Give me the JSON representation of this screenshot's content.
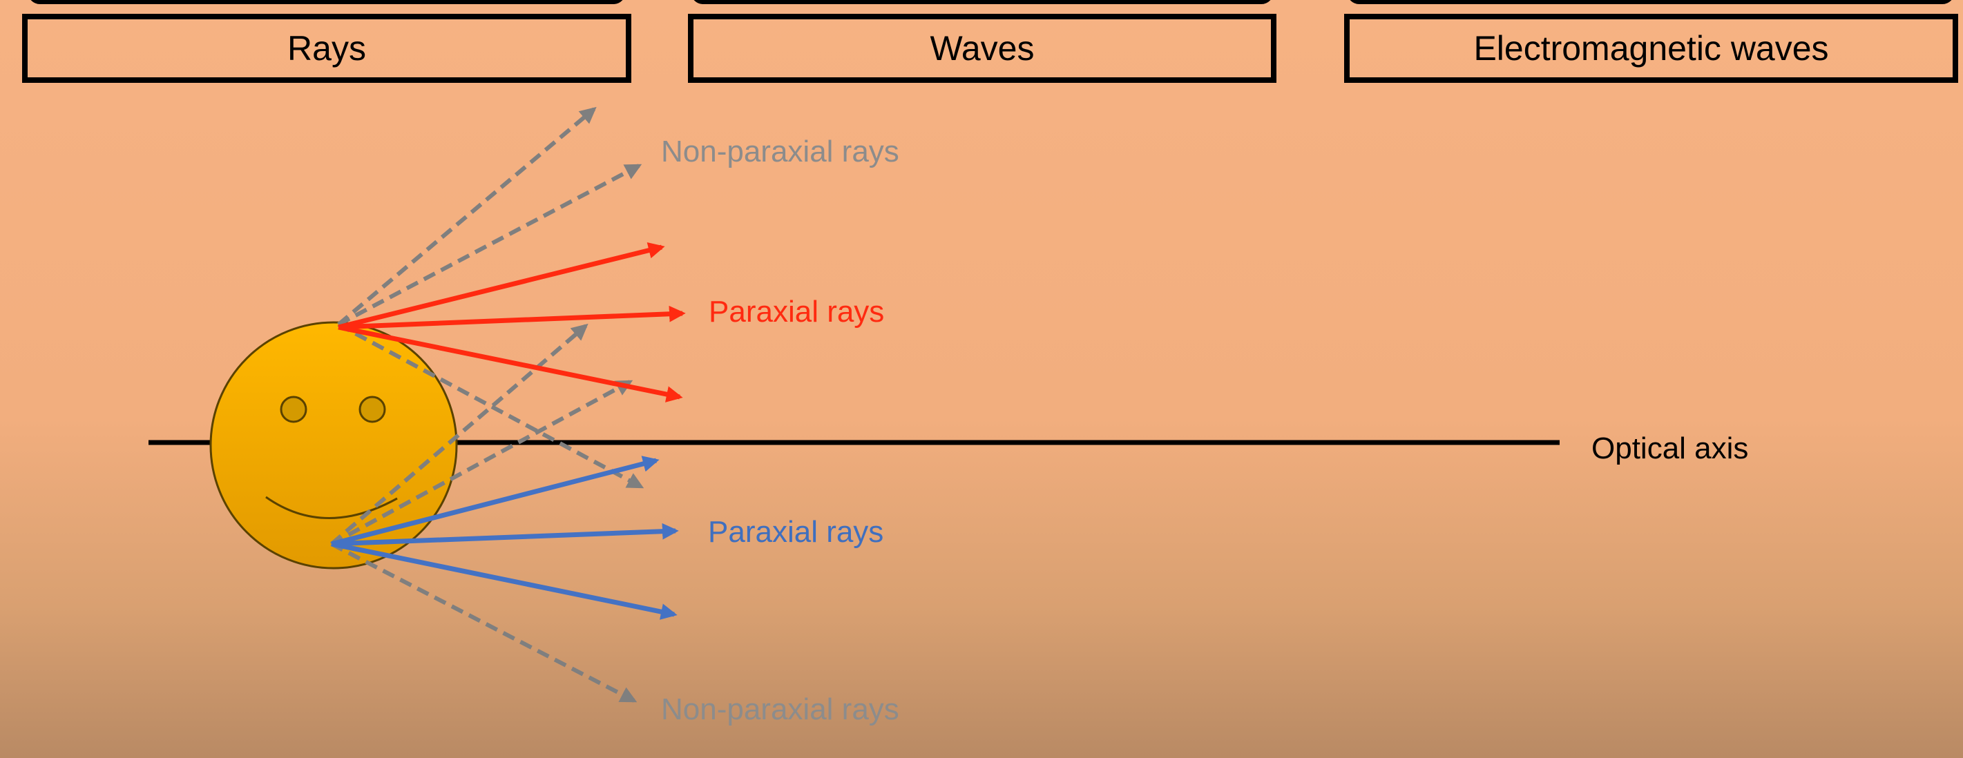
{
  "headings": {
    "rays": "Rays",
    "waves": "Waves",
    "electromagnetic_waves": "Electromagnetic waves"
  },
  "labels": {
    "non_paraxial_top": "Non-paraxial rays",
    "paraxial_top": "Paraxial rays",
    "optical_axis": "Optical axis",
    "paraxial_bottom": "Paraxial rays",
    "non_paraxial_bottom": "Non-paraxial rays"
  },
  "colors": {
    "background_top": "#f6b283",
    "background_bottom": "#b98a64",
    "paraxial_top_rays": "#ff2a10",
    "paraxial_bottom_rays": "#4472c4",
    "non_paraxial_rays": "#7f7f7f",
    "object_face": "#f2a900",
    "optical_axis": "#000000"
  },
  "icons": {
    "object": "smiley-face-icon"
  }
}
